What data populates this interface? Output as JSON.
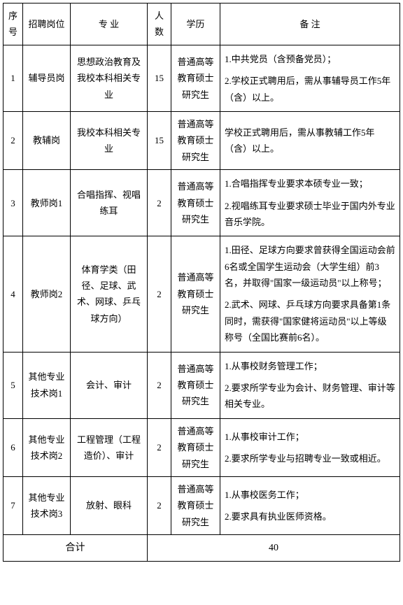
{
  "headers": {
    "seq": "序号",
    "position": "招聘岗位",
    "major": "专 业",
    "count": "人数",
    "education": "学历",
    "note": "备 注"
  },
  "rows": [
    {
      "seq": "1",
      "position": "辅导员岗",
      "major": "思想政治教育及我校本科相关专业",
      "count": "15",
      "education": "普通高等教育硕士研究生",
      "notes": [
        "1.中共党员（含预备党员）；",
        "2.学校正式聘用后，需从事辅导员工作5年（含）以上。"
      ]
    },
    {
      "seq": "2",
      "position": "教辅岗",
      "major": "我校本科相关专业",
      "count": "15",
      "education": "普通高等教育硕士研究生",
      "notes": [
        "学校正式聘用后，需从事教辅工作5年（含）以上。"
      ]
    },
    {
      "seq": "3",
      "position": "教师岗1",
      "major": "合唱指挥、视唱练耳",
      "count": "2",
      "education": "普通高等教育硕士研究生",
      "notes": [
        "1.合唱指挥专业要求本硕专业一致；",
        "2.视唱练耳专业要求硕士毕业于国内外专业音乐学院。"
      ]
    },
    {
      "seq": "4",
      "position": "教师岗2",
      "major": "体育学类（田径、足球、武术、网球、乒乓球方向）",
      "count": "2",
      "education": "普通高等教育硕士研究生",
      "notes": [
        "1.田径、足球方向要求曾获得全国运动会前6名或全国学生运动会（大学生组）前3名，并取得\"国家一级运动员\"以上称号；",
        "2.武术、网球、乒乓球方向要求具备第1条同时，需获得\"国家健将运动员\"以上等级称号（全国比赛前6名）。"
      ]
    },
    {
      "seq": "5",
      "position": "其他专业技术岗1",
      "major": "会计、审计",
      "count": "2",
      "education": "普通高等教育硕士研究生",
      "notes": [
        "1.从事校财务管理工作；",
        "2.要求所学专业为会计、财务管理、审计等相关专业。"
      ]
    },
    {
      "seq": "6",
      "position": "其他专业技术岗2",
      "major": "工程管理（工程造价）、审计",
      "count": "2",
      "education": "普通高等教育硕士研究生",
      "notes": [
        "1.从事校审计工作；",
        "2.要求所学专业与招聘专业一致或相近。"
      ]
    },
    {
      "seq": "7",
      "position": "其他专业技术岗3",
      "major": "放射、眼科",
      "count": "2",
      "education": "普通高等教育硕士研究生",
      "notes": [
        "1.从事校医务工作；",
        "2.要求具有执业医师资格。"
      ]
    }
  ],
  "total": {
    "label": "合计",
    "value": "40"
  }
}
